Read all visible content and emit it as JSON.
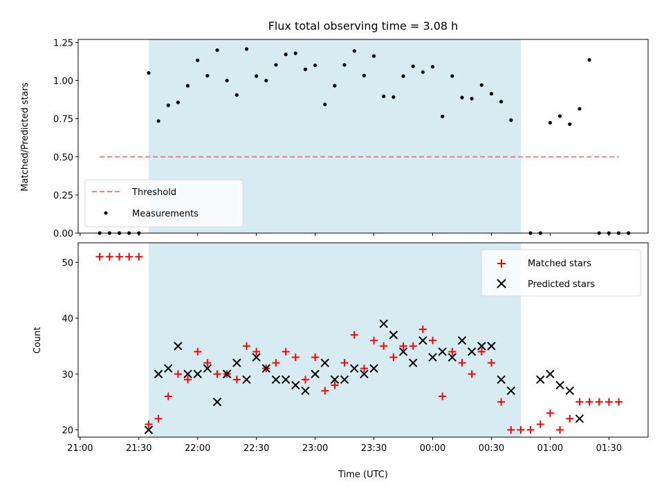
{
  "chart_data": [
    {
      "type": "scatter",
      "title": "Flux total observing time = 3.08 h",
      "xlabel": "",
      "ylabel": "Matched/Predicted stars",
      "xlim": [
        "20:59",
        "01:50"
      ],
      "ylim": [
        0,
        1.27
      ],
      "yticks": [
        0,
        0.25,
        0.5,
        0.75,
        1.0,
        1.25
      ],
      "ytick_labels": [
        "0.00",
        "0.25",
        "0.50",
        "0.75",
        "1.00",
        "1.25"
      ],
      "shaded_interval": [
        "21:35",
        "00:45"
      ],
      "grid": false,
      "legend": {
        "position": "bottom-left",
        "entries": [
          "Threshold",
          "Measurements"
        ]
      },
      "threshold": {
        "name": "Threshold",
        "y": 0.5,
        "x_range": [
          "21:10",
          "01:35"
        ],
        "color": "#f08080"
      },
      "series": [
        {
          "name": "Measurements",
          "color": "#000000",
          "points": [
            [
              "21:10",
              0
            ],
            [
              "21:15",
              0
            ],
            [
              "21:20",
              0
            ],
            [
              "21:25",
              0
            ],
            [
              "21:30",
              0
            ],
            [
              "21:35",
              1.05
            ],
            [
              "21:40",
              0.735
            ],
            [
              "21:45",
              0.838
            ],
            [
              "21:50",
              0.857
            ],
            [
              "21:55",
              0.966
            ],
            [
              "22:00",
              1.133
            ],
            [
              "22:05",
              1.032
            ],
            [
              "22:10",
              1.2
            ],
            [
              "22:15",
              1.0
            ],
            [
              "22:20",
              0.906
            ],
            [
              "22:25",
              1.207
            ],
            [
              "22:30",
              1.03
            ],
            [
              "22:35",
              1.0
            ],
            [
              "22:40",
              1.103
            ],
            [
              "22:45",
              1.172
            ],
            [
              "22:50",
              1.179
            ],
            [
              "22:55",
              1.074
            ],
            [
              "23:00",
              1.1
            ],
            [
              "23:05",
              0.844
            ],
            [
              "23:10",
              0.966
            ],
            [
              "23:15",
              1.103
            ],
            [
              "23:20",
              1.194
            ],
            [
              "23:25",
              1.033
            ],
            [
              "23:30",
              1.161
            ],
            [
              "23:35",
              0.897
            ],
            [
              "23:40",
              0.892
            ],
            [
              "23:45",
              1.029
            ],
            [
              "23:50",
              1.094
            ],
            [
              "23:55",
              1.056
            ],
            [
              "00:00",
              1.091
            ],
            [
              "00:05",
              0.765
            ],
            [
              "00:10",
              1.03
            ],
            [
              "00:15",
              0.889
            ],
            [
              "00:20",
              0.882
            ],
            [
              "00:25",
              0.971
            ],
            [
              "00:30",
              0.914
            ],
            [
              "00:35",
              0.862
            ],
            [
              "00:40",
              0.741
            ],
            [
              "00:50",
              0
            ],
            [
              "00:55",
              0
            ],
            [
              "01:00",
              0.724
            ],
            [
              "01:05",
              0.767
            ],
            [
              "01:10",
              0.714
            ],
            [
              "01:15",
              0.815
            ],
            [
              "01:20",
              1.136
            ],
            [
              "01:25",
              0
            ],
            [
              "01:30",
              0
            ],
            [
              "01:35",
              0
            ],
            [
              "01:40",
              0
            ]
          ]
        }
      ]
    },
    {
      "type": "scatter",
      "title": "",
      "xlabel": "Time (UTC)",
      "ylabel": "Count",
      "xlim": [
        "20:59",
        "01:50"
      ],
      "ylim": [
        18.7,
        53.5
      ],
      "yticks": [
        20,
        30,
        40,
        50
      ],
      "ytick_labels": [
        "20",
        "30",
        "40",
        "50"
      ],
      "xticks": [
        "21:00",
        "21:30",
        "22:00",
        "22:30",
        "23:00",
        "23:30",
        "00:00",
        "00:30",
        "01:00",
        "01:30"
      ],
      "xtick_labels": [
        "21:00",
        "21:30",
        "22:00",
        "22:30",
        "23:00",
        "23:30",
        "00:00",
        "00:30",
        "01:00",
        "01:30"
      ],
      "shaded_interval": [
        "21:35",
        "00:45"
      ],
      "grid": false,
      "legend": {
        "position": "top-right",
        "entries": [
          "Matched stars",
          "Predicted stars"
        ]
      },
      "series": [
        {
          "name": "Matched stars",
          "marker": "plus",
          "color": "#ff0000",
          "points": [
            [
              "21:10",
              51
            ],
            [
              "21:15",
              51
            ],
            [
              "21:20",
              51
            ],
            [
              "21:25",
              51
            ],
            [
              "21:30",
              51
            ],
            [
              "21:35",
              21
            ],
            [
              "21:40",
              22
            ],
            [
              "21:45",
              26
            ],
            [
              "21:50",
              30
            ],
            [
              "21:55",
              29
            ],
            [
              "22:00",
              34
            ],
            [
              "22:05",
              32
            ],
            [
              "22:10",
              30
            ],
            [
              "22:15",
              30
            ],
            [
              "22:20",
              29
            ],
            [
              "22:25",
              35
            ],
            [
              "22:30",
              34
            ],
            [
              "22:35",
              31
            ],
            [
              "22:40",
              32
            ],
            [
              "22:45",
              34
            ],
            [
              "22:50",
              33
            ],
            [
              "22:55",
              29
            ],
            [
              "23:00",
              33
            ],
            [
              "23:05",
              27
            ],
            [
              "23:10",
              28
            ],
            [
              "23:15",
              32
            ],
            [
              "23:20",
              37
            ],
            [
              "23:25",
              31
            ],
            [
              "23:30",
              36
            ],
            [
              "23:35",
              35
            ],
            [
              "23:40",
              33
            ],
            [
              "23:45",
              35
            ],
            [
              "23:50",
              35
            ],
            [
              "23:55",
              38
            ],
            [
              "00:00",
              36
            ],
            [
              "00:05",
              26
            ],
            [
              "00:10",
              34
            ],
            [
              "00:15",
              32
            ],
            [
              "00:20",
              30
            ],
            [
              "00:25",
              34
            ],
            [
              "00:30",
              32
            ],
            [
              "00:35",
              25
            ],
            [
              "00:40",
              20
            ],
            [
              "00:45",
              20
            ],
            [
              "00:50",
              20
            ],
            [
              "00:55",
              21
            ],
            [
              "01:00",
              23
            ],
            [
              "01:05",
              20
            ],
            [
              "01:10",
              22
            ],
            [
              "01:15",
              25
            ],
            [
              "01:20",
              25
            ],
            [
              "01:25",
              25
            ],
            [
              "01:30",
              25
            ],
            [
              "01:35",
              25
            ]
          ]
        },
        {
          "name": "Predicted stars",
          "marker": "x",
          "color": "#000000",
          "points": [
            [
              "21:35",
              20
            ],
            [
              "21:40",
              30
            ],
            [
              "21:45",
              31
            ],
            [
              "21:50",
              35
            ],
            [
              "21:55",
              30
            ],
            [
              "22:00",
              30
            ],
            [
              "22:05",
              31
            ],
            [
              "22:10",
              25
            ],
            [
              "22:15",
              30
            ],
            [
              "22:20",
              32
            ],
            [
              "22:25",
              29
            ],
            [
              "22:30",
              33
            ],
            [
              "22:35",
              31
            ],
            [
              "22:40",
              29
            ],
            [
              "22:45",
              29
            ],
            [
              "22:50",
              28
            ],
            [
              "22:55",
              27
            ],
            [
              "23:00",
              30
            ],
            [
              "23:05",
              32
            ],
            [
              "23:10",
              29
            ],
            [
              "23:15",
              29
            ],
            [
              "23:20",
              31
            ],
            [
              "23:25",
              30
            ],
            [
              "23:30",
              31
            ],
            [
              "23:35",
              39
            ],
            [
              "23:40",
              37
            ],
            [
              "23:45",
              34
            ],
            [
              "23:50",
              32
            ],
            [
              "23:55",
              36
            ],
            [
              "00:00",
              33
            ],
            [
              "00:05",
              34
            ],
            [
              "00:10",
              33
            ],
            [
              "00:15",
              36
            ],
            [
              "00:20",
              34
            ],
            [
              "00:25",
              35
            ],
            [
              "00:30",
              35
            ],
            [
              "00:35",
              29
            ],
            [
              "00:40",
              27
            ],
            [
              "00:55",
              29
            ],
            [
              "01:00",
              30
            ],
            [
              "01:05",
              28
            ],
            [
              "01:10",
              27
            ],
            [
              "01:15",
              22
            ]
          ]
        }
      ]
    }
  ]
}
